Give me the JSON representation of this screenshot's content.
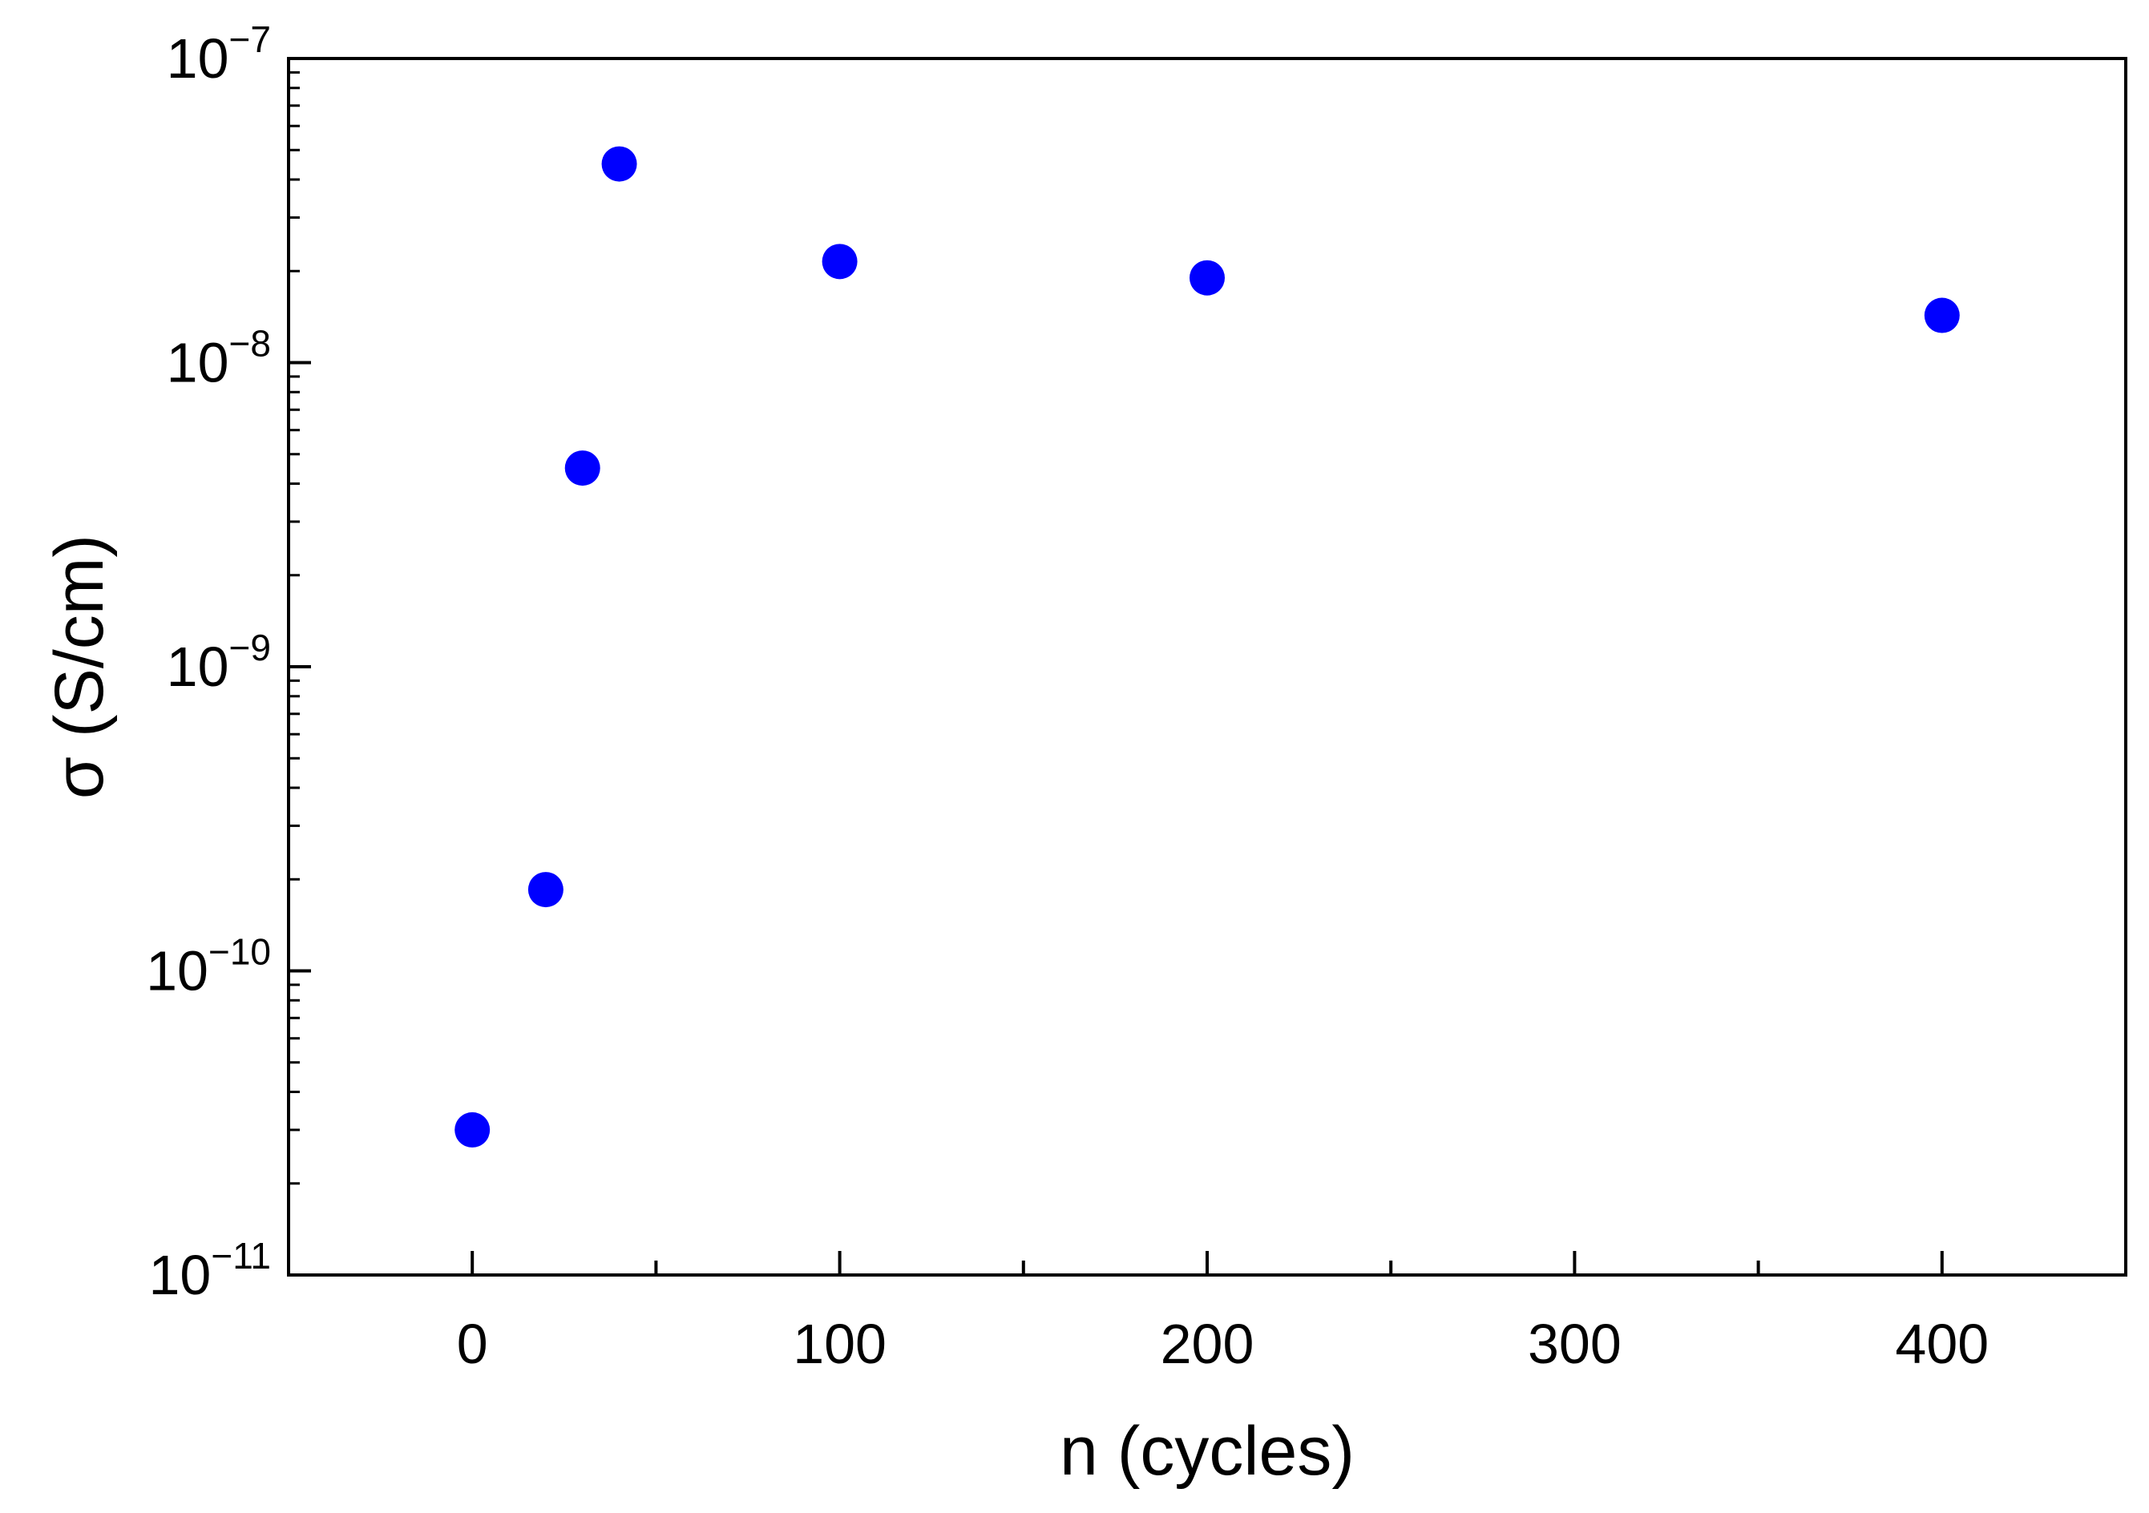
{
  "chart_data": {
    "type": "scatter",
    "xlabel": "n (cycles)",
    "ylabel": "σ (S/cm)",
    "x_scale": "linear",
    "y_scale": "log",
    "xlim": [
      -50,
      450
    ],
    "ylim": [
      1e-11,
      1e-07
    ],
    "x_ticks": [
      0,
      100,
      200,
      300,
      400
    ],
    "x_tick_labels": [
      "0",
      "100",
      "200",
      "300",
      "400"
    ],
    "y_ticks": [
      {
        "value": 1e-11,
        "base": "10",
        "exponent": "−11"
      },
      {
        "value": 1e-10,
        "base": "10",
        "exponent": "−10"
      },
      {
        "value": 1e-09,
        "base": "10",
        "exponent": "−9"
      },
      {
        "value": 1e-08,
        "base": "10",
        "exponent": "−8"
      },
      {
        "value": 1e-07,
        "base": "10",
        "exponent": "−7"
      }
    ],
    "grid": false,
    "legend": "none",
    "series": [
      {
        "color": "#0000ff",
        "marker": "circle",
        "points": [
          {
            "x": 0,
            "y": 3e-11
          },
          {
            "x": 20,
            "y": 1.85e-10
          },
          {
            "x": 30,
            "y": 4.5e-09
          },
          {
            "x": 40,
            "y": 4.5e-08
          },
          {
            "x": 100,
            "y": 2.15e-08
          },
          {
            "x": 200,
            "y": 1.9e-08
          },
          {
            "x": 400,
            "y": 1.43e-08
          }
        ]
      }
    ]
  }
}
